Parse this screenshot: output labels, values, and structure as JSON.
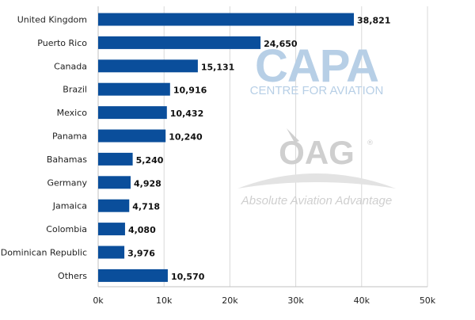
{
  "chart_data": {
    "type": "bar",
    "orientation": "horizontal",
    "categories": [
      "United Kingdom",
      "Puerto Rico",
      "Canada",
      "Brazil",
      "Mexico",
      "Panama",
      "Bahamas",
      "Germany",
      "Jamaica",
      "Colombia",
      "Dominican Republic",
      "Others"
    ],
    "values": [
      38821,
      24650,
      15131,
      10916,
      10432,
      10240,
      5240,
      4928,
      4718,
      4080,
      3976,
      10570
    ],
    "value_labels": [
      "38,821",
      "24,650",
      "15,131",
      "10,916",
      "10,432",
      "10,240",
      "5,240",
      "4,928",
      "4,718",
      "4,080",
      "3,976",
      "10,570"
    ],
    "x_ticks": [
      0,
      10000,
      20000,
      30000,
      40000,
      50000
    ],
    "x_tick_labels": [
      "0k",
      "10k",
      "20k",
      "30k",
      "40k",
      "50k"
    ],
    "xlim": [
      0,
      50000
    ],
    "grid": true,
    "legend": "none",
    "title": "",
    "xlabel": "",
    "ylabel": "",
    "bar_color": "#0a4e9b",
    "grid_color": "#d9d9d9"
  },
  "watermarks": {
    "capa_logo": "CAPA",
    "capa_tagline": "CENTRE FOR AVIATION",
    "oag_logo": "OAG",
    "oag_registered": "®",
    "oag_tagline": "Absolute Aviation Advantage",
    "capa_color": "#b7cfe6",
    "oag_color": "#cfcfcf"
  }
}
